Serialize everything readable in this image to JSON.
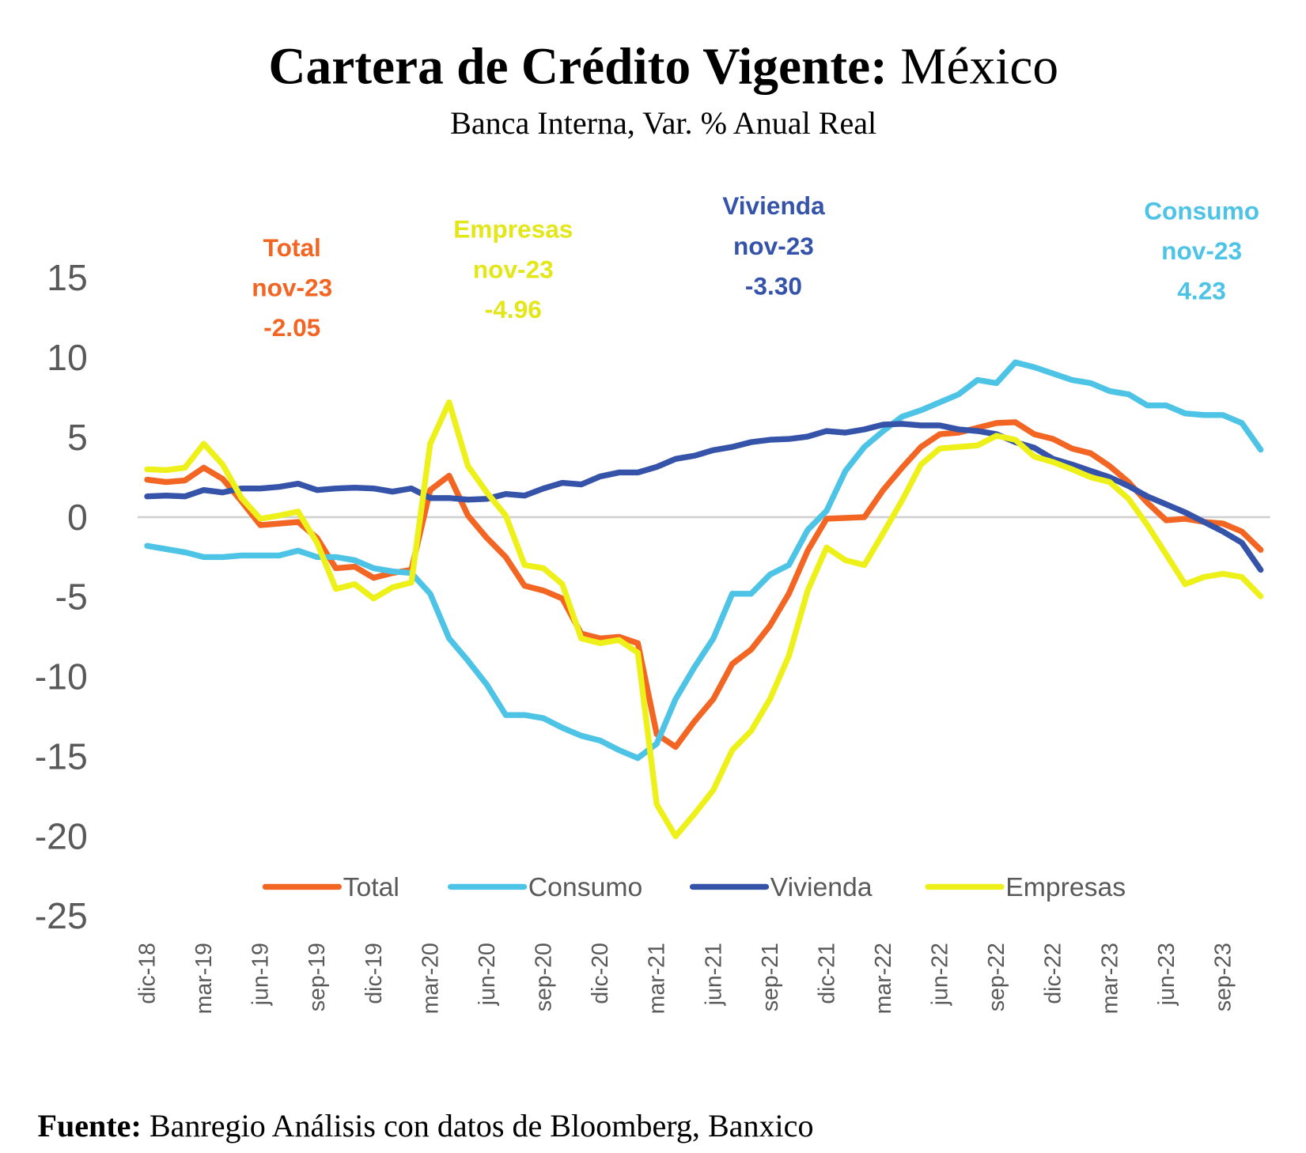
{
  "chart_data": {
    "type": "line",
    "title": [
      "Cartera de Crédito Vigente:",
      "México"
    ],
    "subtitle": "Banca Interna, Var. % Anual Real",
    "source": [
      "Fuente:",
      "Banregio Análisis con datos de Bloomberg, Banxico"
    ],
    "categories": [
      "dic-18",
      null,
      null,
      "mar-19",
      null,
      null,
      "jun-19",
      null,
      null,
      "sep-19",
      null,
      null,
      "dic-19",
      null,
      null,
      "mar-20",
      null,
      null,
      "jun-20",
      null,
      null,
      "sep-20",
      null,
      null,
      "dic-20",
      null,
      null,
      "mar-21",
      null,
      null,
      "jun-21",
      null,
      null,
      "sep-21",
      null,
      null,
      "dic-21",
      null,
      null,
      "mar-22",
      null,
      null,
      "jun-22",
      null,
      null,
      "sep-22",
      null,
      null,
      "dic-22",
      null,
      null,
      "mar-23",
      null,
      null,
      "jun-23",
      null,
      null,
      "sep-23",
      null,
      null
    ],
    "series": [
      {
        "name": "Total",
        "color": "#f26522",
        "values": [
          2.35,
          2.2,
          2.3,
          3.1,
          2.4,
          1.0,
          -0.5,
          -0.4,
          -0.3,
          -1.3,
          -3.2,
          -3.1,
          -3.8,
          -3.5,
          -3.3,
          1.7,
          2.6,
          0.1,
          -1.3,
          -2.5,
          -4.3,
          -4.6,
          -5.1,
          -7.3,
          -7.6,
          -7.5,
          -7.9,
          -13.6,
          -14.4,
          -12.8,
          -11.4,
          -9.2,
          -8.3,
          -6.8,
          -4.8,
          -2.1,
          -0.1,
          -0.05,
          0.0,
          1.7,
          3.1,
          4.4,
          5.2,
          5.3,
          5.6,
          5.9,
          5.95,
          5.2,
          4.9,
          4.3,
          4.0,
          3.2,
          2.2,
          0.9,
          -0.2,
          -0.1,
          -0.3,
          -0.4,
          -0.9,
          -2.05
        ]
      },
      {
        "name": "Consumo",
        "color": "#4dc3e6",
        "values": [
          -1.8,
          -2.0,
          -2.2,
          -2.5,
          -2.5,
          -2.4,
          -2.4,
          -2.4,
          -2.1,
          -2.5,
          -2.5,
          -2.7,
          -3.2,
          -3.4,
          -3.5,
          -4.8,
          -7.6,
          -9.0,
          -10.5,
          -12.4,
          -12.4,
          -12.6,
          -13.2,
          -13.7,
          -14.0,
          -14.6,
          -15.1,
          -14.2,
          -11.4,
          -9.4,
          -7.6,
          -4.8,
          -4.8,
          -3.6,
          -3.0,
          -0.8,
          0.4,
          2.9,
          4.4,
          5.4,
          6.3,
          6.7,
          7.2,
          7.7,
          8.6,
          8.4,
          9.7,
          9.4,
          9.0,
          8.6,
          8.4,
          7.9,
          7.7,
          7.0,
          7.0,
          6.5,
          6.4,
          6.4,
          5.9,
          4.23
        ]
      },
      {
        "name": "Vivienda",
        "color": "#3553a8",
        "values": [
          1.3,
          1.35,
          1.3,
          1.7,
          1.55,
          1.8,
          1.8,
          1.9,
          2.1,
          1.7,
          1.8,
          1.85,
          1.8,
          1.6,
          1.8,
          1.2,
          1.2,
          1.1,
          1.15,
          1.45,
          1.35,
          1.8,
          2.15,
          2.05,
          2.55,
          2.8,
          2.8,
          3.15,
          3.65,
          3.85,
          4.2,
          4.4,
          4.7,
          4.85,
          4.9,
          5.05,
          5.4,
          5.3,
          5.5,
          5.8,
          5.85,
          5.75,
          5.75,
          5.5,
          5.4,
          5.2,
          4.7,
          4.35,
          3.65,
          3.3,
          2.9,
          2.5,
          1.95,
          1.3,
          0.8,
          0.3,
          -0.3,
          -0.9,
          -1.6,
          -3.3
        ]
      },
      {
        "name": "Empresas",
        "color": "#eef01a",
        "values": [
          3.0,
          2.95,
          3.1,
          4.6,
          3.3,
          1.2,
          -0.1,
          0.1,
          0.35,
          -1.6,
          -4.5,
          -4.2,
          -5.1,
          -4.4,
          -4.1,
          4.6,
          7.2,
          3.2,
          1.55,
          0.1,
          -3.0,
          -3.2,
          -4.2,
          -7.6,
          -7.9,
          -7.7,
          -8.5,
          -18.0,
          -20.0,
          -18.6,
          -17.1,
          -14.6,
          -13.4,
          -11.4,
          -8.7,
          -4.6,
          -1.9,
          -2.7,
          -3.0,
          -1.0,
          1.05,
          3.3,
          4.3,
          4.4,
          4.5,
          5.1,
          4.85,
          3.8,
          3.45,
          3.0,
          2.5,
          2.2,
          1.15,
          -0.5,
          -2.35,
          -4.2,
          -3.75,
          -3.55,
          -3.75,
          -4.96
        ]
      }
    ],
    "ylim": [
      -25,
      15
    ],
    "yticks": [
      -25,
      -20,
      -15,
      -10,
      -5,
      0,
      5,
      10,
      15
    ],
    "grid": false,
    "annotations": [
      {
        "lines": [
          "Total",
          "nov-23",
          "-2.05"
        ],
        "color": "#f26522"
      },
      {
        "lines": [
          "Empresas",
          "nov-23",
          "-4.96"
        ],
        "color": "#e3e617"
      },
      {
        "lines": [
          "Vivienda",
          "nov-23",
          "-3.30"
        ],
        "color": "#3553a8"
      },
      {
        "lines": [
          "Consumo",
          "nov-23",
          "4.23"
        ],
        "color": "#4dc3e6"
      }
    ]
  }
}
